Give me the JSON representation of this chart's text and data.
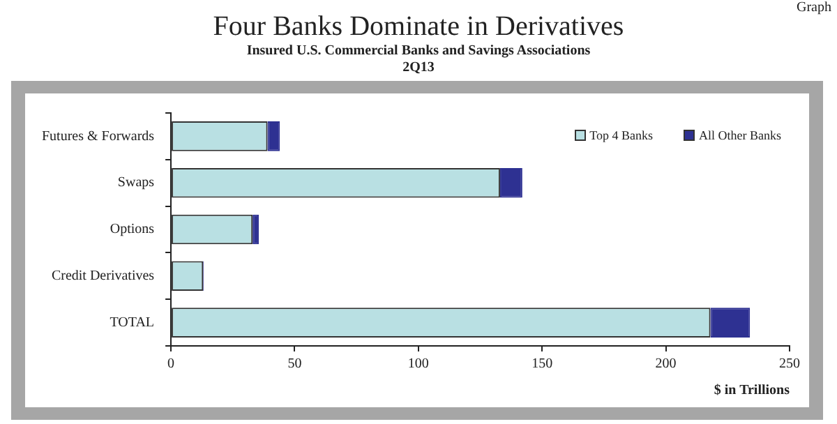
{
  "chart_data": {
    "type": "bar",
    "title": "Four Banks Dominate in Derivatives",
    "subtitle": "Insured U.S. Commercial Banks and Savings Associations\n2Q13",
    "annotations": [
      "Graph"
    ],
    "orientation": "horizontal",
    "stacked": true,
    "categories": [
      "Futures & Forwards",
      "Swaps",
      "Options",
      "Credit Derivatives",
      "TOTAL"
    ],
    "series": [
      {
        "name": "Top 4 Banks",
        "color": "#b9e0e3",
        "values": [
          39,
          133,
          33,
          13,
          218
        ]
      },
      {
        "name": "All Other Banks",
        "color": "#2e3192",
        "values": [
          5,
          9,
          2.5,
          0.3,
          16
        ]
      }
    ],
    "xlabel": "$ in Trillions",
    "xlim": [
      0,
      250
    ],
    "xticks": [
      0,
      50,
      100,
      150,
      200,
      250
    ],
    "grid": false,
    "legend": "top right"
  }
}
